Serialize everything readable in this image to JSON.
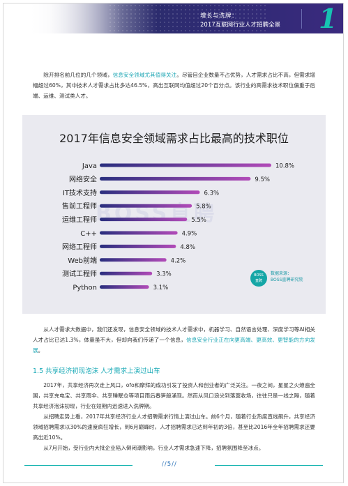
{
  "header": {
    "line1": "增长与洗牌：",
    "line2": "2017互联网行业人才招聘全景",
    "chapter_number": "1"
  },
  "para1": {
    "s1": "除开排名前几位的几个领域，",
    "s1_hl": "信息安全领域尤其值得关注",
    "s2": "。尽管目企业数量不占优势，人才需求占比不高，但需求增幅超过60%，其中技术人才需求占比多达46.5%，高出互联网均值超过20个百分点。该行业的高需求技术职位偏重于后端、运维、测试类人才。"
  },
  "chart_data": {
    "type": "bar",
    "title": "2017年信息安全领域需求占比最高的技术职位",
    "categories": [
      "Java",
      "网络安全",
      "IT技术支持",
      "售前工程师",
      "运维工程师",
      "C++",
      "网络工程师",
      "Web前端",
      "测试工程师",
      "Python"
    ],
    "values": [
      10.8,
      9.5,
      6.3,
      5.8,
      5.5,
      4.9,
      4.8,
      4.2,
      3.3,
      3.1
    ],
    "value_labels": [
      "10.8%",
      "9.5%",
      "6.3%",
      "5.8%",
      "5.5%",
      "4.9%",
      "4.8%",
      "4.2%",
      "3.3%",
      "3.1%"
    ],
    "xlabel": "",
    "ylabel": "",
    "orientation": "horizontal",
    "gradient_start": "#2a2f7e",
    "gradient_end": "#b24bb8",
    "grid": false
  },
  "chart_extra": {
    "watermark": "BOSS直聘",
    "source_badge_top": "BOSS",
    "source_badge_bottom": "直聘",
    "source_label": "数据来源：",
    "source_name": "BOSS直聘研究院"
  },
  "para2": {
    "s1": "从人才需求大数据中，我们还发现，信息安全领域的技术人才需求中，机器学习、自然语言处理、深度学习等AI相关人才占比已达1.3%，体量虽不大，但却向我们传递了一个信息，",
    "s1_hl": "信息安全行业正在向更高端、更高效、更智能的方向发展",
    "s2": "。"
  },
  "section": {
    "title": "1.5 共享经济初现泡沫 人才需求上演过山车"
  },
  "para3": {
    "p1": "2017年，共享经济再次走上风口，ofo和摩拜的成功引发了投资人和创业者的广泛关注。一夜之间，星星之火燎遍全国，共享充电宝、共享雨伞、共享睡眠仓等项目雨后春笋般涌现。然而从风口浪尖到落寞收场，往往只是一线之隔，随着共享经济泡沫初现，行业在短期内迅速进入洗牌期。",
    "p2": "从招聘走势上看，2017年共享经济行业人才招聘需求行情上演过山车。前6个月，随着行业热度直线飙升，共享经济领域招聘需求以30%的速度疯狂增长，到6月巅峰时，人才招聘需求已达到年初的3倍，甚至比2016年全年招聘需求还要高出近10%。",
    "p3": "从7月开始，受行业内大批企业陷入倒闭潮影响，行业人才需求急速下降，招聘氛围降至冰点。"
  },
  "footer": {
    "page_number": "//5//"
  }
}
